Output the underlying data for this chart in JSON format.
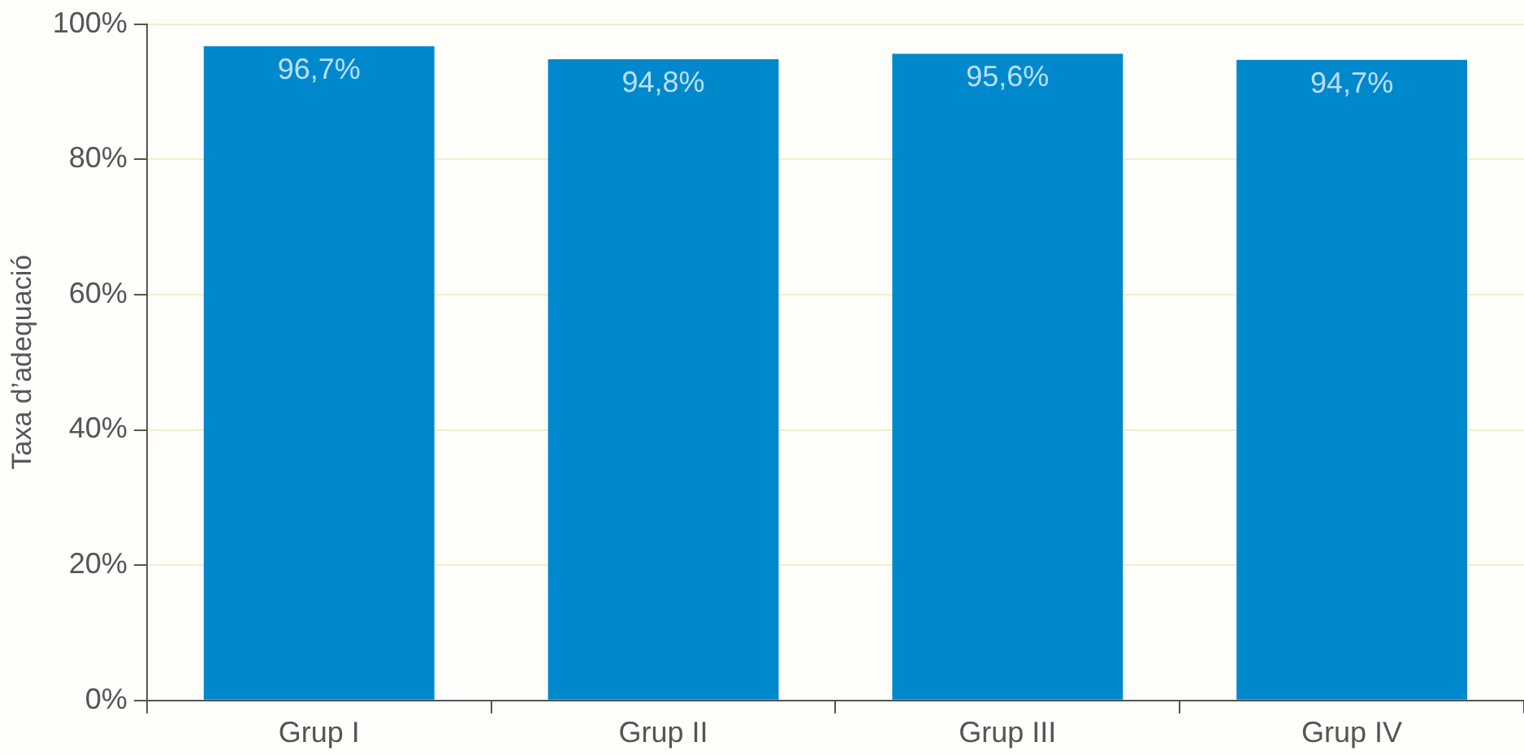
{
  "chart_data": {
    "type": "bar",
    "ylabel": "Taxa d’adequació",
    "categories": [
      "Grup I",
      "Grup II",
      "Grup III",
      "Grup IV"
    ],
    "values": [
      96.7,
      94.8,
      95.6,
      94.7
    ],
    "color": "#0088cc",
    "value_labels": [
      "96,7%",
      "94,8%",
      "95,6%",
      "94,7%"
    ],
    "ylim": [
      0,
      100
    ],
    "yticks": [
      {
        "value": 0,
        "label": "0%"
      },
      {
        "value": 20,
        "label": "20%"
      },
      {
        "value": 40,
        "label": "40%"
      },
      {
        "value": 60,
        "label": "60%"
      },
      {
        "value": 80,
        "label": "80%"
      },
      {
        "value": 100,
        "label": "100%"
      }
    ],
    "grid": "y",
    "legend": false
  }
}
